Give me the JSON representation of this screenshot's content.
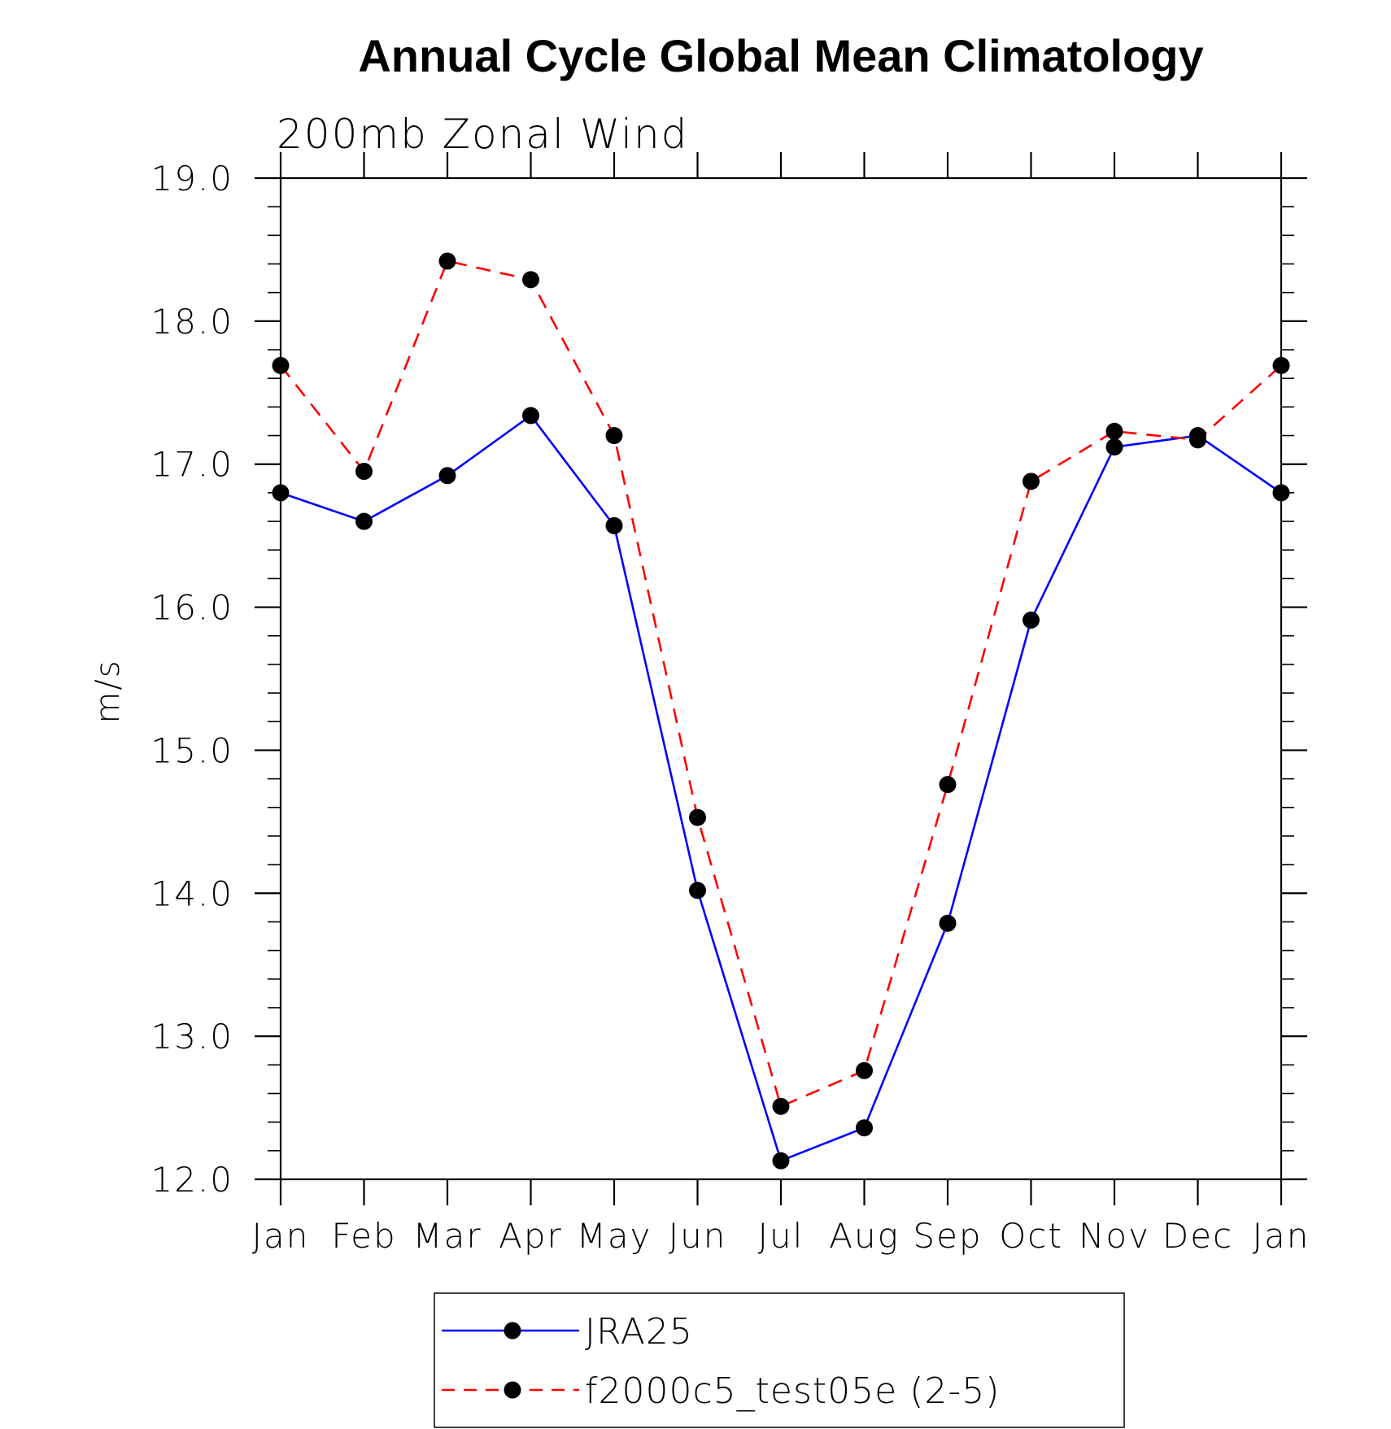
{
  "chart_data": {
    "type": "line",
    "title": "Annual Cycle Global Mean Climatology",
    "subtitle": "200mb Zonal Wind",
    "xlabel": "",
    "ylabel": "m/s",
    "categories": [
      "Jan",
      "Feb",
      "Mar",
      "Apr",
      "May",
      "Jun",
      "Jul",
      "Aug",
      "Sep",
      "Oct",
      "Nov",
      "Dec",
      "Jan"
    ],
    "ylim": [
      12.0,
      19.0
    ],
    "yticks": [
      "12.0",
      "13.0",
      "14.0",
      "15.0",
      "16.0",
      "17.0",
      "18.0",
      "19.0"
    ],
    "grid": false,
    "legend_position": "bottom",
    "series": [
      {
        "name": "JRA25",
        "color": "#0000ff",
        "line_style": "solid",
        "marker": "filled-circle",
        "values": [
          16.8,
          16.6,
          16.92,
          17.34,
          16.57,
          14.02,
          12.13,
          12.36,
          13.79,
          15.91,
          17.12,
          17.2,
          16.8
        ]
      },
      {
        "name": "f2000c5_test05e (2-5)",
        "color": "#ff0000",
        "line_style": "dashed",
        "marker": "filled-circle",
        "values": [
          17.69,
          16.95,
          18.42,
          18.29,
          17.2,
          14.53,
          12.51,
          12.76,
          14.76,
          16.88,
          17.23,
          17.17,
          17.69
        ]
      }
    ]
  }
}
